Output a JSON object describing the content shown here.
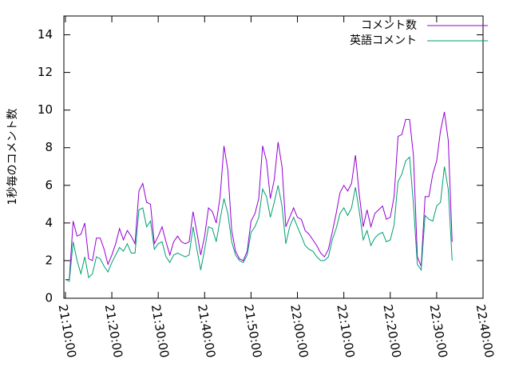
{
  "chart_data": {
    "type": "line",
    "ylabel": "1秒毎のコメント数",
    "x": [
      "21:10:00",
      "21:10:50",
      "21:11:40",
      "21:12:30",
      "21:13:20",
      "21:14:10",
      "21:15:00",
      "21:15:50",
      "21:16:40",
      "21:17:30",
      "21:18:20",
      "21:19:10",
      "21:20:00",
      "21:20:50",
      "21:21:40",
      "21:22:30",
      "21:23:20",
      "21:24:10",
      "21:25:00",
      "21:25:50",
      "21:26:40",
      "21:27:30",
      "21:28:20",
      "21:29:10",
      "21:30:00",
      "21:30:50",
      "21:31:40",
      "21:32:30",
      "21:33:20",
      "21:34:10",
      "21:35:00",
      "21:35:50",
      "21:36:40",
      "21:37:30",
      "21:38:20",
      "21:39:10",
      "21:40:00",
      "21:40:50",
      "21:41:40",
      "21:42:30",
      "21:43:20",
      "21:44:10",
      "21:45:00",
      "21:45:50",
      "21:46:40",
      "21:47:30",
      "21:48:20",
      "21:49:10",
      "21:50:00",
      "21:50:50",
      "21:51:40",
      "21:52:30",
      "21:53:20",
      "21:54:10",
      "21:55:00",
      "21:55:50",
      "21:56:40",
      "21:57:30",
      "21:58:20",
      "21:59:10",
      "22:00:00",
      "22:00:50",
      "22:01:40",
      "22:02:30",
      "22:03:20",
      "22:04:10",
      "22:05:00",
      "22:05:50",
      "22:06:40",
      "22:07:30",
      "22:08:20",
      "22:09:10",
      "22:10:00",
      "22:10:50",
      "22:11:40",
      "22:12:30",
      "22:13:20",
      "22:14:10",
      "22:15:00",
      "22:15:50",
      "22:16:40",
      "22:17:30",
      "22:18:20",
      "22:19:10",
      "22:20:00",
      "22:20:50",
      "22:21:40",
      "22:22:30",
      "22:23:20",
      "22:24:10",
      "22:25:00",
      "22:25:50",
      "22:26:40",
      "22:27:30",
      "22:28:20",
      "22:29:10",
      "22:30:00",
      "22:30:50",
      "22:31:40",
      "22:32:30",
      "22:33:20"
    ],
    "series": [
      {
        "name": "コメント数",
        "color": "#9400d3",
        "values": [
          1.0,
          1.0,
          4.1,
          3.3,
          3.4,
          4.0,
          2.1,
          2.0,
          3.2,
          3.2,
          2.6,
          1.8,
          2.3,
          2.9,
          3.7,
          3.1,
          3.6,
          3.3,
          2.9,
          5.7,
          6.1,
          5.1,
          5.0,
          2.9,
          3.3,
          3.8,
          3.0,
          2.3,
          3.0,
          3.3,
          3.0,
          2.9,
          3.0,
          4.6,
          3.5,
          2.3,
          3.3,
          4.8,
          4.6,
          4.0,
          5.4,
          8.1,
          6.8,
          3.6,
          2.5,
          2.1,
          2.0,
          2.5,
          4.1,
          4.5,
          5.3,
          8.1,
          7.3,
          5.3,
          6.3,
          8.3,
          7.0,
          3.8,
          4.3,
          4.8,
          4.3,
          4.2,
          3.6,
          3.4,
          3.1,
          2.8,
          2.4,
          2.2,
          2.6,
          3.5,
          4.5,
          5.6,
          6.0,
          5.7,
          6.1,
          7.6,
          5.5,
          3.8,
          4.7,
          3.8,
          4.5,
          4.7,
          4.9,
          4.2,
          4.3,
          5.4,
          8.6,
          8.7,
          9.5,
          9.5,
          7.6,
          2.2,
          1.7,
          5.4,
          5.4,
          6.6,
          7.3,
          8.9,
          9.9,
          8.4,
          3.0
        ]
      },
      {
        "name": "英語コメント",
        "color": "#009e73",
        "values": [
          1.0,
          0.9,
          3.0,
          2.0,
          1.3,
          2.2,
          1.1,
          1.3,
          2.2,
          2.1,
          1.7,
          1.4,
          1.9,
          2.3,
          2.7,
          2.5,
          2.9,
          2.4,
          2.4,
          4.7,
          4.8,
          3.8,
          4.1,
          2.6,
          2.9,
          3.0,
          2.2,
          1.9,
          2.3,
          2.4,
          2.3,
          2.2,
          2.3,
          3.8,
          2.6,
          1.5,
          2.6,
          3.8,
          3.7,
          3.0,
          4.2,
          5.3,
          4.5,
          3.0,
          2.3,
          2.0,
          1.9,
          2.3,
          3.5,
          3.8,
          4.3,
          5.8,
          5.4,
          4.3,
          5.1,
          6.0,
          4.9,
          2.9,
          3.8,
          4.3,
          3.8,
          3.3,
          2.8,
          2.6,
          2.5,
          2.2,
          2.0,
          2.0,
          2.2,
          3.1,
          3.7,
          4.5,
          4.8,
          4.4,
          4.8,
          5.9,
          4.6,
          3.1,
          3.6,
          2.8,
          3.2,
          3.4,
          3.5,
          3.0,
          3.1,
          3.9,
          6.2,
          6.6,
          7.3,
          7.5,
          5.0,
          1.8,
          1.5,
          4.4,
          4.2,
          4.1,
          4.9,
          5.1,
          7.0,
          5.8,
          2.0
        ]
      }
    ],
    "xlim": [
      "21:09:40",
      "22:40:00"
    ],
    "xticks": [
      "21:10:00",
      "21:20:00",
      "21:30:00",
      "21:40:00",
      "21:50:00",
      "22:00:00",
      "22:10:00",
      "22:20:00",
      "22:30:00",
      "22:40:00"
    ],
    "ylim": [
      0,
      15
    ],
    "yticks": [
      0,
      2,
      4,
      6,
      8,
      10,
      12,
      14
    ],
    "legend": "top-right"
  }
}
